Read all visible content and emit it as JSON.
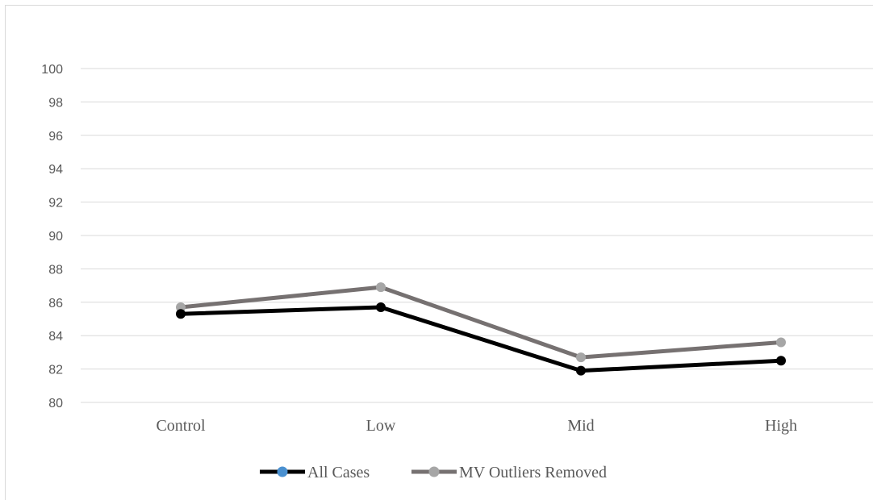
{
  "chart_data": {
    "type": "line",
    "title": "",
    "xlabel": "",
    "ylabel": "",
    "categories": [
      "Control",
      "Low",
      "Mid",
      "High"
    ],
    "ylim": [
      80,
      100
    ],
    "yticks": [
      80,
      82,
      84,
      86,
      88,
      90,
      92,
      94,
      96,
      98,
      100
    ],
    "grid": "horizontal",
    "legend_position": "bottom",
    "series": [
      {
        "name": "All Cases",
        "values": [
          85.3,
          85.7,
          81.9,
          82.5
        ],
        "line_color": "#000000",
        "marker_color": "#000000",
        "legend_marker_color": "#4a90d0"
      },
      {
        "name": "MV Outliers Removed",
        "values": [
          85.7,
          86.9,
          82.7,
          83.6
        ],
        "line_color": "#767171",
        "marker_color": "#a6a6a6",
        "legend_marker_color": "#a6a6a6"
      }
    ],
    "colors": {
      "gridline": "#d9d9d9",
      "text": "#595959"
    }
  }
}
